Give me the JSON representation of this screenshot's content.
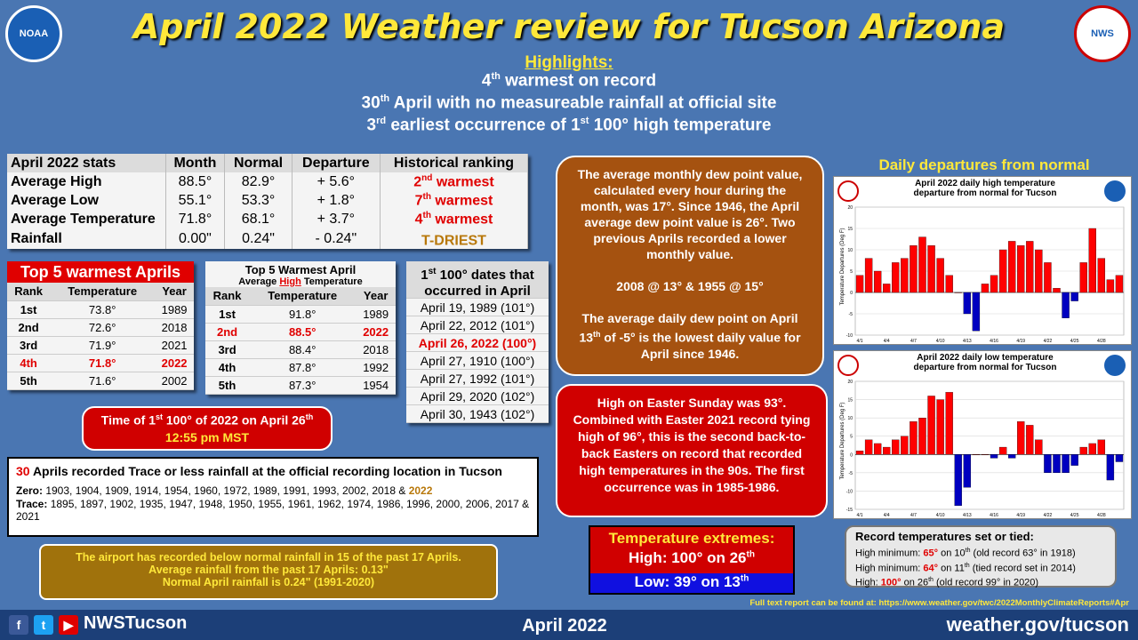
{
  "title": "April 2022 Weather review for Tucson Arizona",
  "logos": {
    "noaa": "NOAA",
    "nws": "NWS"
  },
  "highlights": {
    "heading": "Highlights:",
    "line1_pre": "4",
    "line1_sup": "th",
    "line1_post": " warmest on record",
    "line2_pre": "30",
    "line2_sup": "th",
    "line2_post": " April with  no measureable rainfall at official site",
    "line3_pre": "3",
    "line3_sup": "rd",
    "line3_mid": " earliest occurrence of 1",
    "line3_sup2": "st",
    "line3_post": " 100° high temperature"
  },
  "stats": {
    "headers": [
      "April 2022 stats",
      "Month",
      "Normal",
      "Departure",
      "Historical ranking"
    ],
    "rows": [
      {
        "label": "Average High",
        "month": "88.5°",
        "normal": "82.9°",
        "departure": "+ 5.6°",
        "rank_num": "2",
        "rank_sup": "nd",
        "rank_text": " warmest"
      },
      {
        "label": "Average Low",
        "month": "55.1°",
        "normal": "53.3°",
        "departure": "+ 1.8°",
        "rank_num": "7",
        "rank_sup": "th",
        "rank_text": " warmest"
      },
      {
        "label": "Average Temperature",
        "month": "71.8°",
        "normal": "68.1°",
        "departure": "+ 3.7°",
        "rank_num": "4",
        "rank_sup": "th",
        "rank_text": " warmest"
      },
      {
        "label": "Rainfall",
        "month": "0.00\"",
        "normal": "0.24\"",
        "departure": "- 0.24\"",
        "rank_num": "",
        "rank_sup": "",
        "rank_text": "T-DRIEST"
      }
    ]
  },
  "top5_warmest": {
    "title": "Top 5 warmest Aprils",
    "headers": [
      "Rank",
      "Temperature",
      "Year"
    ],
    "rows": [
      [
        "1st",
        "73.8°",
        "1989"
      ],
      [
        "2nd",
        "72.6°",
        "2018"
      ],
      [
        "3rd",
        "71.9°",
        "2021"
      ],
      [
        "4th",
        "71.8°",
        "2022"
      ],
      [
        "5th",
        "71.6°",
        "2002"
      ]
    ]
  },
  "top5_high": {
    "title": "Top 5 Warmest April",
    "subtitle_pre": "Average ",
    "subtitle_red": "High",
    "subtitle_post": "  Temperature",
    "headers": [
      "Rank",
      "Temperature",
      "Year"
    ],
    "rows": [
      [
        "1st",
        "91.8°",
        "1989"
      ],
      [
        "2nd",
        "88.5°",
        "2022"
      ],
      [
        "3rd",
        "88.4°",
        "2018"
      ],
      [
        "4th",
        "87.8°",
        "1992"
      ],
      [
        "5th",
        "87.3°",
        "1954"
      ]
    ]
  },
  "first100": {
    "title_pre": "1",
    "title_sup": "st",
    "title_post": " 100° dates that occurred in April",
    "dates": [
      "April 19, 1989 (101°)",
      "April 22, 2012 (101°)",
      "April 26, 2022 (100°)",
      "April 27, 1910 (100°)",
      "April 27, 1992 (101°)",
      "April 29, 2020 (102°)",
      "April 30, 1943 (102°)"
    ]
  },
  "time100": {
    "line1_pre": "Time of 1",
    "line1_sup": "st",
    "line1_mid": " 100° of 2022 on April 26",
    "line1_sup2": "th",
    "line2": "12:55 pm MST"
  },
  "trace": {
    "count": "30",
    "heading": " Aprils recorded Trace or less rainfall at the official recording location in Tucson",
    "zero_label": "Zero:",
    "zero_years": " 1903, 1904, 1909, 1914, 1954, 1960, 1972, 1989, 1991, 1993, 2002, 2018 & ",
    "zero_last": "2022",
    "trace_label": "Trace:",
    "trace_years": " 1895, 1897, 1902, 1935, 1947, 1948, 1950, 1955, 1961, 1962, 1974, 1986, 1996, 2000, 2006, 2017 & 2021"
  },
  "airport": {
    "line1": "The airport has recorded below normal rainfall in 15 of the past 17 Aprils.",
    "line2": "Average rainfall from the past 17 Aprils: 0.13\"",
    "line3": "Normal April rainfall is 0.24\" (1991-2020)"
  },
  "dewpoint": {
    "p1": "The average monthly dew point value, calculated every hour during the month, was 17°. Since 1946, the April average dew point value is 26°. Two previous Aprils recorded a lower monthly value.",
    "p2": "2008 @ 13° & 1955 @ 15°",
    "p3_pre": "The average daily dew point on April 13",
    "p3_sup": "th",
    "p3_post": " of -5° is the lowest daily value for April since 1946."
  },
  "easter": {
    "text": "High on Easter Sunday was 93°. Combined with Easter 2021 record tying high of 96°, this is the second back-to-back Easters on record that recorded high temperatures in the 90s. The first occurrence was in 1985-1986."
  },
  "extremes": {
    "title": "Temperature extremes:",
    "high_pre": "High: 100° on 26",
    "high_sup": "th",
    "low_pre": "Low: 39° on 13",
    "low_sup": "th"
  },
  "records": {
    "title": "Record temperatures set or tied:",
    "r1_a": "High minimum: ",
    "r1_v": "65°",
    "r1_b": " on 10",
    "r1_sup": "th",
    "r1_c": " (old record 63° in 1918)",
    "r2_a": "High minimum: ",
    "r2_v": "64°",
    "r2_b": " on 11",
    "r2_sup": "th",
    "r2_c": " (tied record set in 2014)",
    "r3_a": "High: ",
    "r3_v": "100°",
    "r3_b": " on 26",
    "r3_sup": "th",
    "r3_c": " (old record 99° in 2020)"
  },
  "departures_heading": "Daily departures from normal",
  "chart_data": [
    {
      "type": "bar",
      "title": "April 2022 daily high temperature departure from normal for Tucson",
      "ylabel": "Temperature Departures (Deg F)",
      "ylim": [
        -10,
        20
      ],
      "yticks": [
        -10,
        -5,
        0,
        5,
        10,
        15,
        20
      ],
      "xticklabels": [
        "4/1",
        "4/4",
        "4/7",
        "4/10",
        "4/13",
        "4/16",
        "4/19",
        "4/22",
        "4/25",
        "4/28"
      ],
      "values": [
        4,
        8,
        5,
        2,
        7,
        8,
        11,
        13,
        11,
        8,
        4,
        0,
        -5,
        -9,
        2,
        4,
        10,
        12,
        11,
        12,
        10,
        7,
        1,
        -6,
        -2,
        7,
        15,
        8,
        3,
        4
      ],
      "colors": {
        "positive": "#ff0000",
        "negative": "#0000c0"
      }
    },
    {
      "type": "bar",
      "title": "April 2022 daily low temperature departure from normal for Tucson",
      "ylabel": "Temperature Departures (Deg F)",
      "ylim": [
        -15,
        20
      ],
      "yticks": [
        -15,
        -10,
        -5,
        0,
        5,
        10,
        15,
        20
      ],
      "xticklabels": [
        "4/1",
        "4/4",
        "4/7",
        "4/10",
        "4/13",
        "4/16",
        "4/19",
        "4/22",
        "4/25",
        "4/28"
      ],
      "values": [
        1,
        4,
        3,
        2,
        4,
        5,
        9,
        10,
        16,
        15,
        17,
        -14,
        -9,
        0,
        0,
        -1,
        2,
        -1,
        9,
        8,
        4,
        -5,
        -5,
        -5,
        -3,
        2,
        3,
        4,
        -7,
        -2
      ],
      "colors": {
        "positive": "#ff0000",
        "negative": "#0000c0"
      }
    }
  ],
  "footer": {
    "handle": "NWSTucson",
    "month": "April 2022",
    "url_text": "Full text report can be found at: https://www.weather.gov/twc/2022MonthlyClimateReports#Apr",
    "site": "weather.gov/tucson",
    "icons": [
      "facebook-icon",
      "twitter-icon",
      "youtube-icon"
    ]
  }
}
